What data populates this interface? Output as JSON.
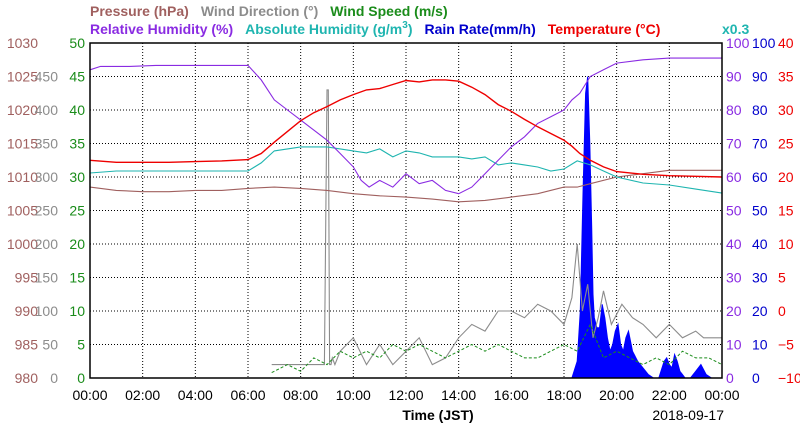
{
  "chart_data": {
    "type": "line",
    "header_row1": [
      {
        "text": "Pressure (hPa)",
        "color": "#a0605f"
      },
      {
        "text": "Wind Direction (°)",
        "color": "#8c8c8c"
      },
      {
        "text": "Wind Speed (m/s)",
        "color": "#1a8c1a"
      }
    ],
    "header_row2": [
      {
        "text": "Relative Humidity (%)",
        "color": "#8a2be2"
      },
      {
        "text": "Absolute Humidity (g/m",
        "sup": "3",
        "close": ")",
        "color": "#1fb5b0"
      },
      {
        "text": "Rain Rate(mm/h)",
        "color": "#0000cc"
      },
      {
        "text": "Temperature (°C)",
        "color": "#ee0000"
      },
      {
        "text": "x0.3",
        "color": "#1fb5b0"
      }
    ],
    "xlabel": "Time (JST)",
    "date": "2018-09-17",
    "x_ticks": [
      "00:00",
      "02:00",
      "04:00",
      "06:00",
      "08:00",
      "10:00",
      "12:00",
      "14:00",
      "16:00",
      "18:00",
      "20:00",
      "22:00",
      "00:00"
    ],
    "axes_left": {
      "pressure": {
        "color": "#a0605f",
        "ticks": [
          "1030",
          "1025",
          "1020",
          "1015",
          "1010",
          "1005",
          "1000",
          "995",
          "990",
          "985",
          "980"
        ]
      },
      "wind_direction": {
        "color": "#8c8c8c",
        "ticks": [
          "450",
          "400",
          "350",
          "300",
          "250",
          "200",
          "150",
          "100",
          "50",
          "0"
        ]
      },
      "wind_speed": {
        "color": "#1a8c1a",
        "ticks": [
          "50",
          "45",
          "40",
          "35",
          "30",
          "25",
          "20",
          "15",
          "10",
          "5",
          "0"
        ]
      }
    },
    "axes_right": {
      "relative_humidity": {
        "color": "#8a2be2",
        "ticks": [
          "100",
          "90",
          "80",
          "70",
          "60",
          "50",
          "40",
          "30",
          "20",
          "10",
          "0"
        ]
      },
      "rain_rate": {
        "color": "#0000cc",
        "ticks": [
          "100",
          "90",
          "80",
          "70",
          "60",
          "50",
          "40",
          "30",
          "20",
          "10",
          "0"
        ]
      },
      "temperature": {
        "color": "#ee0000",
        "ticks": [
          "40",
          "35",
          "30",
          "25",
          "20",
          "15",
          "10",
          "5",
          "0",
          "−5",
          "−10"
        ]
      }
    },
    "xlim_hours": [
      0,
      24
    ],
    "grid": true,
    "series": [
      {
        "name": "Pressure (hPa)",
        "color": "#a0605f",
        "ylim": [
          980,
          1030
        ],
        "x": [
          0,
          1,
          2,
          3,
          4,
          5,
          6,
          7,
          8,
          9,
          10,
          11,
          12,
          13,
          14,
          15,
          16,
          17,
          18,
          18.5,
          19,
          20,
          21,
          22,
          23,
          24
        ],
        "y": [
          1008.5,
          1008,
          1007.8,
          1007.8,
          1008,
          1008,
          1008.3,
          1008.5,
          1008.3,
          1008,
          1007.5,
          1007.2,
          1007,
          1006.7,
          1006.3,
          1006.5,
          1007,
          1007.5,
          1008.5,
          1008.5,
          1009,
          1010,
          1010.5,
          1011,
          1011,
          1011
        ]
      },
      {
        "name": "Relative Humidity (%)",
        "color": "#8a2be2",
        "ylim": [
          0,
          100
        ],
        "x": [
          0,
          0.4,
          1.5,
          2.5,
          4,
          5,
          6,
          6.5,
          7,
          7.5,
          8,
          8.5,
          9,
          9.5,
          10,
          10.3,
          10.6,
          11,
          11.5,
          12,
          12.5,
          13,
          13.5,
          14,
          14.5,
          15,
          15.5,
          16,
          16.5,
          17,
          17.5,
          18,
          18.3,
          18.6,
          19,
          19.5,
          20,
          21,
          22,
          23,
          24
        ],
        "y": [
          92,
          93,
          93,
          93.3,
          93.3,
          93.3,
          93.3,
          89,
          83,
          80,
          77,
          74,
          71,
          67,
          63,
          59,
          57,
          59,
          57,
          61,
          58,
          59,
          56,
          55,
          57,
          61,
          65,
          69,
          72,
          76,
          78,
          80,
          83,
          85,
          90,
          92,
          94,
          95,
          95.5,
          95.5,
          95.5
        ]
      },
      {
        "name": "Absolute Humidity (g/m3)",
        "color": "#1fb5b0",
        "ylim": [
          0,
          166.67
        ],
        "x": [
          0,
          1,
          2,
          3,
          4,
          5,
          6,
          6.5,
          7,
          7.5,
          8,
          8.5,
          9,
          9.5,
          10,
          10.5,
          11,
          11.5,
          12,
          12.5,
          13,
          13.5,
          14,
          14.5,
          15,
          15.5,
          16,
          16.5,
          17,
          17.5,
          18,
          18.5,
          19,
          19.5,
          20,
          21,
          22,
          23,
          24
        ],
        "y": [
          102,
          103,
          103,
          103,
          103,
          103,
          103,
          107,
          113,
          114,
          115,
          115,
          115,
          114,
          113,
          112,
          114,
          110,
          113,
          112,
          110,
          110,
          110,
          109,
          110,
          106,
          107,
          106,
          105,
          103,
          104,
          108,
          106,
          103,
          100,
          97,
          96,
          94,
          92
        ]
      },
      {
        "name": "Temperature (°C)",
        "color": "#ee0000",
        "ylim": [
          -10,
          40
        ],
        "x": [
          0,
          1,
          2,
          3,
          4,
          5,
          6,
          6.5,
          7,
          7.5,
          8,
          8.5,
          9,
          9.5,
          10,
          10.5,
          11,
          11.5,
          12,
          12.5,
          13,
          13.5,
          14,
          14.5,
          15,
          15.5,
          16,
          16.5,
          17,
          17.5,
          18,
          18.3,
          18.6,
          19,
          19.5,
          20,
          21,
          22,
          23,
          24
        ],
        "y": [
          22.5,
          22.2,
          22.2,
          22.2,
          22.3,
          22.4,
          22.6,
          23.5,
          25.2,
          26.8,
          28.4,
          29.6,
          30.5,
          31.5,
          32.3,
          33,
          33.2,
          33.8,
          34.4,
          34.2,
          34.5,
          34.5,
          34.3,
          33.4,
          32.3,
          30.8,
          29.8,
          28.6,
          27.5,
          26.5,
          25.5,
          24.6,
          23.5,
          22.5,
          21.5,
          20.8,
          20.4,
          20.2,
          20.1,
          20
        ]
      },
      {
        "name": "Wind Direction (°)",
        "color": "#8c8c8c",
        "ylim": [
          0,
          500
        ],
        "x": [
          0,
          6.9,
          6.9,
          8.9,
          8.9,
          9.0,
          9.05,
          9.1,
          9.15,
          9.2,
          9.3,
          9.5,
          10,
          10.5,
          11,
          11.5,
          12,
          12.5,
          13,
          13.5,
          14,
          14.5,
          15,
          15.5,
          16,
          16.5,
          17,
          17.5,
          18,
          18.3,
          18.5,
          18.7,
          18.9,
          19.1,
          19.3,
          19.5,
          19.8,
          20.2,
          20.6,
          21,
          21.5,
          22,
          22.5,
          23,
          23.3,
          23.5,
          23.8,
          24
        ],
        "y": [
          null,
          20,
          20,
          20,
          20,
          430,
          430,
          20,
          20,
          30,
          20,
          40,
          60,
          20,
          50,
          20,
          40,
          60,
          20,
          30,
          60,
          80,
          70,
          100,
          100,
          90,
          110,
          100,
          80,
          120,
          200,
          100,
          140,
          60,
          90,
          130,
          80,
          110,
          90,
          80,
          60,
          80,
          60,
          70,
          60,
          60,
          60,
          60
        ]
      },
      {
        "name": "Wind Speed (m/s)",
        "color": "#1a8c1a",
        "ylim": [
          0,
          50
        ],
        "x": [
          0,
          6.9,
          7,
          7.5,
          8,
          8.5,
          9,
          9.5,
          10,
          10.5,
          11,
          11.5,
          12,
          12.5,
          13,
          13.5,
          14,
          14.5,
          15,
          15.5,
          16,
          16.5,
          17,
          17.5,
          18,
          18.5,
          19,
          19.5,
          20,
          20.5,
          21,
          21.5,
          22,
          22.5,
          23,
          23.5,
          24
        ],
        "y": [
          null,
          0.8,
          1,
          2,
          1,
          3,
          2,
          4,
          3,
          4,
          3,
          5,
          4,
          5,
          4,
          3,
          4,
          5,
          4,
          5,
          4,
          3,
          3,
          4,
          5,
          4,
          8,
          3,
          4,
          3,
          2,
          3,
          2,
          4,
          3,
          3,
          2
        ]
      },
      {
        "name": "Rain Rate(mm/h)",
        "color": "#0000ff",
        "ylim": [
          0,
          100
        ],
        "x": [
          0,
          18.3,
          18.5,
          18.62,
          18.72,
          18.82,
          18.9,
          18.98,
          19.05,
          19.1,
          19.15,
          19.25,
          19.35,
          19.45,
          19.55,
          19.65,
          19.75,
          19.85,
          19.95,
          20.05,
          20.15,
          20.25,
          20.35,
          20.45,
          20.6,
          20.8,
          21,
          21.2,
          21.4,
          21.6,
          21.8,
          21.9,
          22,
          22.1,
          22.2,
          22.3,
          22.4,
          22.5,
          22.6,
          22.8,
          23,
          23.2,
          23.4,
          23.6,
          23.8,
          24
        ],
        "y": [
          0,
          0,
          5,
          20,
          55,
          85,
          90,
          70,
          45,
          25,
          18,
          15,
          15,
          22,
          18,
          12,
          8,
          10,
          14,
          16,
          10,
          8,
          12,
          14,
          8,
          5,
          3,
          1,
          0,
          0,
          5,
          6,
          4,
          3,
          7,
          5,
          2,
          1,
          0,
          0,
          2,
          4,
          1,
          0,
          0,
          0
        ]
      }
    ]
  }
}
